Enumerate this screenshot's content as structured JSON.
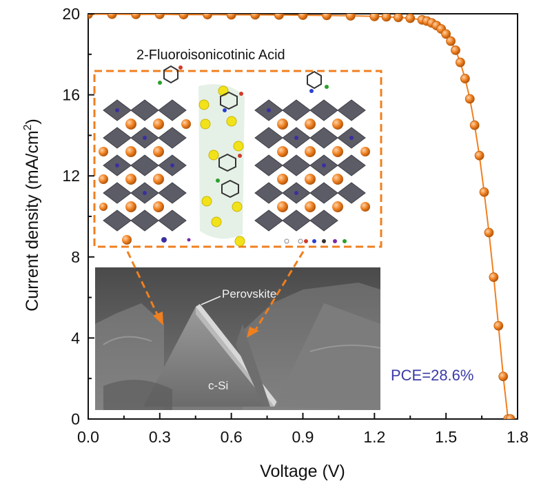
{
  "chart_data": {
    "type": "line",
    "title": "",
    "xlabel": "Voltage (V)",
    "ylabel": "Current density (mA/cm",
    "ylabel_sup": "2",
    "ylabel_tail": ")",
    "xlim": [
      0.0,
      1.8
    ],
    "ylim": [
      0,
      20
    ],
    "xticks": [
      "0.0",
      "0.3",
      "0.6",
      "0.9",
      "1.2",
      "1.5",
      "1.8"
    ],
    "xtick_values": [
      0.0,
      0.3,
      0.6,
      0.9,
      1.2,
      1.5,
      1.8
    ],
    "yticks": [
      "0",
      "4",
      "8",
      "12",
      "16",
      "20"
    ],
    "ytick_values": [
      0,
      4,
      8,
      12,
      16,
      20
    ],
    "grid": false,
    "series": [
      {
        "color": "#f07f1f",
        "marker": "circle",
        "x": [
          0.0,
          0.1,
          0.2,
          0.3,
          0.4,
          0.5,
          0.6,
          0.7,
          0.8,
          0.9,
          1.0,
          1.1,
          1.2,
          1.25,
          1.3,
          1.35,
          1.4,
          1.42,
          1.44,
          1.46,
          1.48,
          1.5,
          1.52,
          1.54,
          1.56,
          1.58,
          1.6,
          1.62,
          1.64,
          1.66,
          1.68,
          1.7,
          1.72,
          1.74,
          1.76,
          1.77
        ],
        "y": [
          19.98,
          19.98,
          19.97,
          19.97,
          19.96,
          19.96,
          19.95,
          19.95,
          19.94,
          19.93,
          19.92,
          19.9,
          19.87,
          19.85,
          19.82,
          19.78,
          19.7,
          19.64,
          19.55,
          19.42,
          19.25,
          19.0,
          18.65,
          18.2,
          17.6,
          16.8,
          15.8,
          14.5,
          13.0,
          11.2,
          9.2,
          7.0,
          4.6,
          2.1,
          0.0,
          0.0
        ]
      }
    ],
    "annotations": {
      "inset_title": "2-Fluoroisonicotinic Acid",
      "pce": "PCE=28.6%",
      "pce_color": "#3a3aa8",
      "sem_label_top": "Perovskite",
      "sem_label_bottom": "c-Si",
      "dash_color": "#f07f1f"
    }
  }
}
